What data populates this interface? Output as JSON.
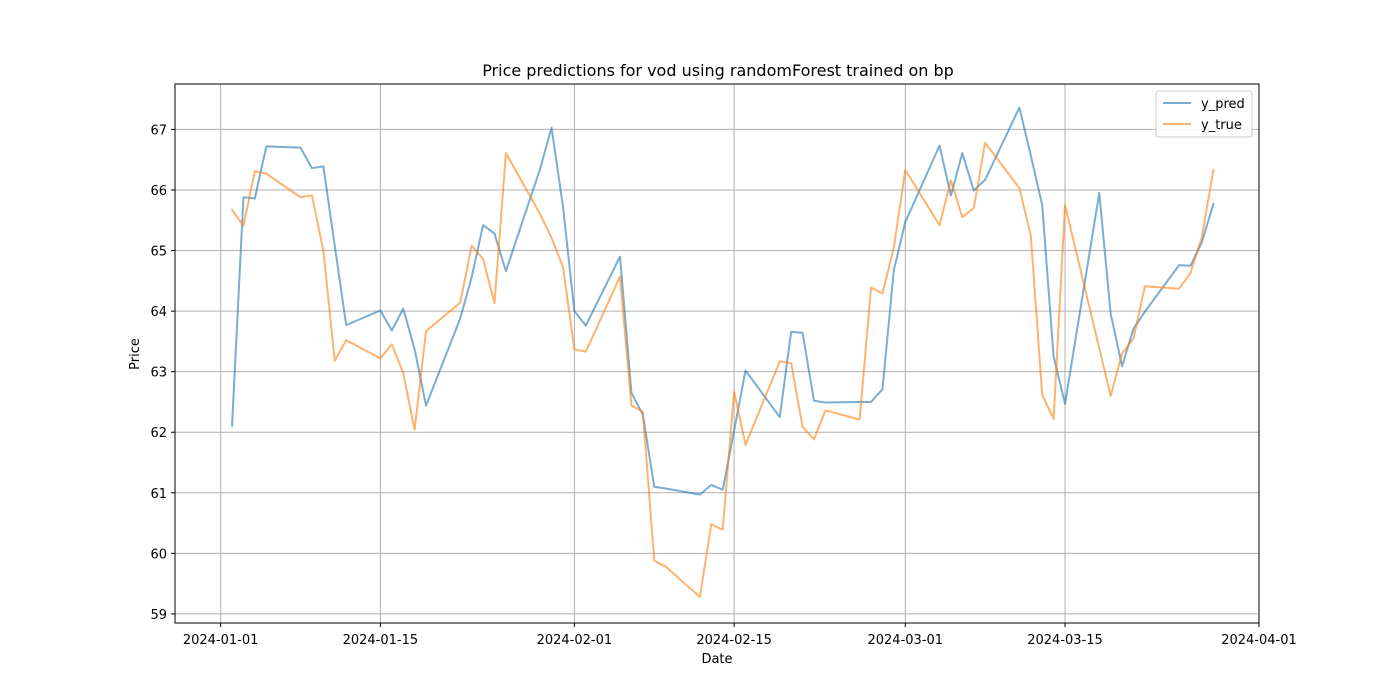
{
  "chart_data": {
    "type": "line",
    "title": "Price predictions for vod using randomForest trained on bp",
    "xlabel": "Date",
    "ylabel": "Price",
    "xlim": [
      "2023-12-28",
      "2024-04-01"
    ],
    "ylim": [
      58.85,
      67.75
    ],
    "x_ticks": [
      "2024-01-01",
      "2024-01-15",
      "2024-02-01",
      "2024-02-15",
      "2024-03-01",
      "2024-03-15",
      "2024-04-01"
    ],
    "y_ticks": [
      59,
      60,
      61,
      62,
      63,
      64,
      65,
      66,
      67
    ],
    "grid": true,
    "legend_position": "top-right",
    "series": [
      {
        "name": "y_pred",
        "color": "#1f77b4",
        "points": [
          [
            "2024-01-02",
            62.11
          ],
          [
            "2024-01-03",
            65.88
          ],
          [
            "2024-01-04",
            65.86
          ],
          [
            "2024-01-05",
            66.72
          ],
          [
            "2024-01-08",
            66.7
          ],
          [
            "2024-01-09",
            66.36
          ],
          [
            "2024-01-10",
            66.39
          ],
          [
            "2024-01-12",
            63.77
          ],
          [
            "2024-01-15",
            64.01
          ],
          [
            "2024-01-16",
            63.68
          ],
          [
            "2024-01-17",
            64.04
          ],
          [
            "2024-01-18",
            63.37
          ],
          [
            "2024-01-19",
            62.44
          ],
          [
            "2024-01-22",
            63.88
          ],
          [
            "2024-01-23",
            64.56
          ],
          [
            "2024-01-24",
            65.42
          ],
          [
            "2024-01-25",
            65.28
          ],
          [
            "2024-01-26",
            64.66
          ],
          [
            "2024-01-29",
            66.35
          ],
          [
            "2024-01-30",
            67.03
          ],
          [
            "2024-01-31",
            65.73
          ],
          [
            "2024-02-01",
            64.0
          ],
          [
            "2024-02-02",
            63.76
          ],
          [
            "2024-02-05",
            64.9
          ],
          [
            "2024-02-06",
            62.65
          ],
          [
            "2024-02-07",
            62.29
          ],
          [
            "2024-02-08",
            61.1
          ],
          [
            "2024-02-09",
            61.07
          ],
          [
            "2024-02-12",
            60.97
          ],
          [
            "2024-02-13",
            61.13
          ],
          [
            "2024-02-14",
            61.05
          ],
          [
            "2024-02-15",
            62.03
          ],
          [
            "2024-02-16",
            63.02
          ],
          [
            "2024-02-19",
            62.25
          ],
          [
            "2024-02-20",
            63.66
          ],
          [
            "2024-02-21",
            63.64
          ],
          [
            "2024-02-22",
            62.52
          ],
          [
            "2024-02-23",
            62.49
          ],
          [
            "2024-02-26",
            62.5
          ],
          [
            "2024-02-27",
            62.5
          ],
          [
            "2024-02-28",
            62.71
          ],
          [
            "2024-02-29",
            64.68
          ],
          [
            "2024-03-01",
            65.47
          ],
          [
            "2024-03-04",
            66.73
          ],
          [
            "2024-03-05",
            65.91
          ],
          [
            "2024-03-06",
            66.61
          ],
          [
            "2024-03-07",
            65.99
          ],
          [
            "2024-03-08",
            66.17
          ],
          [
            "2024-03-11",
            67.36
          ],
          [
            "2024-03-12",
            66.57
          ],
          [
            "2024-03-13",
            65.75
          ],
          [
            "2024-03-14",
            63.25
          ],
          [
            "2024-03-15",
            62.47
          ],
          [
            "2024-03-18",
            65.95
          ],
          [
            "2024-03-19",
            63.96
          ],
          [
            "2024-03-20",
            63.09
          ],
          [
            "2024-03-21",
            63.71
          ],
          [
            "2024-03-22",
            63.99
          ],
          [
            "2024-03-25",
            64.76
          ],
          [
            "2024-03-26",
            64.75
          ],
          [
            "2024-03-27",
            65.14
          ],
          [
            "2024-03-28",
            65.77
          ]
        ]
      },
      {
        "name": "y_true",
        "color": "#ff7f0e",
        "points": [
          [
            "2024-01-02",
            65.67
          ],
          [
            "2024-01-03",
            65.41
          ],
          [
            "2024-01-04",
            66.31
          ],
          [
            "2024-01-05",
            66.27
          ],
          [
            "2024-01-08",
            65.88
          ],
          [
            "2024-01-09",
            65.91
          ],
          [
            "2024-01-10",
            65.0
          ],
          [
            "2024-01-11",
            63.18
          ],
          [
            "2024-01-12",
            63.52
          ],
          [
            "2024-01-15",
            63.22
          ],
          [
            "2024-01-16",
            63.45
          ],
          [
            "2024-01-17",
            62.98
          ],
          [
            "2024-01-18",
            62.04
          ],
          [
            "2024-01-19",
            63.67
          ],
          [
            "2024-01-22",
            64.14
          ],
          [
            "2024-01-23",
            65.08
          ],
          [
            "2024-01-24",
            64.86
          ],
          [
            "2024-01-25",
            64.13
          ],
          [
            "2024-01-26",
            66.61
          ],
          [
            "2024-01-29",
            65.6
          ],
          [
            "2024-01-30",
            65.21
          ],
          [
            "2024-01-31",
            64.73
          ],
          [
            "2024-02-01",
            63.37
          ],
          [
            "2024-02-02",
            63.33
          ],
          [
            "2024-02-05",
            64.57
          ],
          [
            "2024-02-06",
            62.44
          ],
          [
            "2024-02-07",
            62.34
          ],
          [
            "2024-02-08",
            59.88
          ],
          [
            "2024-02-09",
            59.78
          ],
          [
            "2024-02-12",
            59.28
          ],
          [
            "2024-02-13",
            60.48
          ],
          [
            "2024-02-14",
            60.39
          ],
          [
            "2024-02-15",
            62.67
          ],
          [
            "2024-02-16",
            61.79
          ],
          [
            "2024-02-19",
            63.17
          ],
          [
            "2024-02-20",
            63.14
          ],
          [
            "2024-02-21",
            62.09
          ],
          [
            "2024-02-22",
            61.88
          ],
          [
            "2024-02-23",
            62.36
          ],
          [
            "2024-02-26",
            62.21
          ],
          [
            "2024-02-27",
            64.39
          ],
          [
            "2024-02-28",
            64.29
          ],
          [
            "2024-02-29",
            65.05
          ],
          [
            "2024-03-01",
            66.33
          ],
          [
            "2024-03-04",
            65.42
          ],
          [
            "2024-03-05",
            66.16
          ],
          [
            "2024-03-06",
            65.55
          ],
          [
            "2024-03-07",
            65.7
          ],
          [
            "2024-03-08",
            66.78
          ],
          [
            "2024-03-11",
            66.03
          ],
          [
            "2024-03-12",
            65.25
          ],
          [
            "2024-03-13",
            62.62
          ],
          [
            "2024-03-14",
            62.22
          ],
          [
            "2024-03-15",
            65.75
          ],
          [
            "2024-03-19",
            62.6
          ],
          [
            "2024-03-20",
            63.3
          ],
          [
            "2024-03-21",
            63.55
          ],
          [
            "2024-03-22",
            64.41
          ],
          [
            "2024-03-25",
            64.37
          ],
          [
            "2024-03-26",
            64.63
          ],
          [
            "2024-03-27",
            65.23
          ],
          [
            "2024-03-28",
            66.33
          ]
        ]
      }
    ]
  }
}
